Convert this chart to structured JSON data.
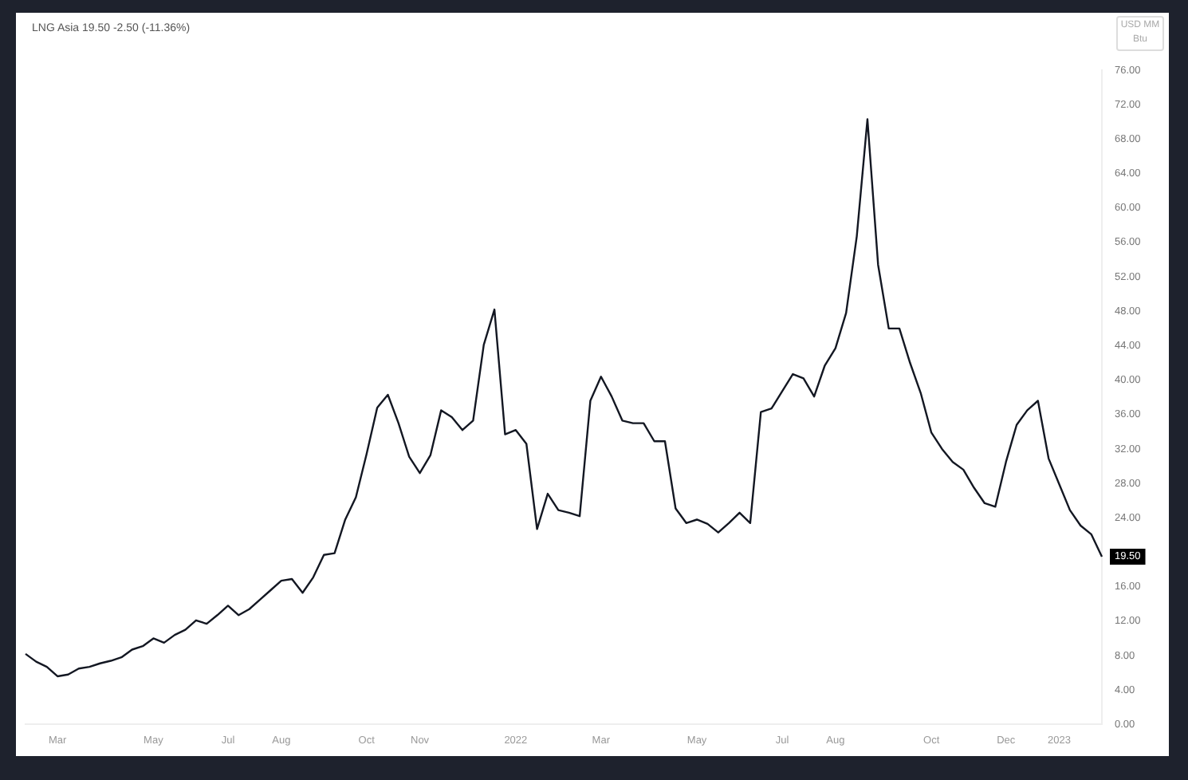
{
  "chart_data": {
    "type": "line",
    "title": "LNG Asia 19.50 -2.50 (-11.36%)",
    "ylabel": "USD MM Btu",
    "categories": [
      null,
      null,
      null,
      "Mar",
      null,
      null,
      null,
      null,
      null,
      null,
      null,
      null,
      "May",
      null,
      null,
      null,
      null,
      null,
      null,
      "Jul",
      null,
      null,
      null,
      null,
      "Aug",
      null,
      null,
      null,
      null,
      null,
      null,
      null,
      "Oct",
      null,
      null,
      null,
      null,
      "Nov",
      null,
      null,
      null,
      null,
      null,
      null,
      null,
      null,
      "2022",
      null,
      null,
      null,
      null,
      null,
      null,
      null,
      "Mar",
      null,
      null,
      null,
      null,
      null,
      null,
      null,
      null,
      "May",
      null,
      null,
      null,
      null,
      null,
      null,
      null,
      "Jul",
      null,
      null,
      null,
      null,
      "Aug",
      null,
      null,
      null,
      null,
      null,
      null,
      null,
      null,
      "Oct",
      null,
      null,
      null,
      null,
      null,
      null,
      "Dec",
      null,
      null,
      null,
      null,
      "2023",
      null,
      null,
      null,
      null
    ],
    "series": [
      {
        "color": "#131722",
        "values": [
          8.2,
          7.3,
          6.7,
          5.6,
          5.8,
          6.5,
          6.7,
          7.1,
          7.4,
          7.8,
          8.7,
          9.1,
          10.0,
          9.5,
          10.4,
          11.0,
          12.1,
          11.7,
          12.7,
          13.8,
          12.7,
          13.4,
          14.5,
          15.6,
          16.7,
          16.9,
          15.3,
          17.1,
          19.7,
          19.9,
          23.8,
          26.4,
          31.4,
          36.8,
          38.3,
          35.0,
          31.1,
          29.2,
          31.3,
          36.5,
          35.7,
          34.2,
          35.3,
          44.1,
          48.2,
          33.7,
          34.2,
          32.6,
          22.7,
          26.8,
          24.9,
          24.6,
          24.2,
          37.6,
          40.4,
          38.1,
          35.3,
          35.0,
          35.0,
          32.9,
          32.9,
          25.1,
          23.4,
          23.8,
          23.3,
          22.3,
          23.4,
          24.6,
          23.4,
          36.3,
          36.7,
          38.7,
          40.7,
          40.2,
          38.1,
          41.7,
          43.7,
          47.8,
          56.7,
          70.3,
          53.4,
          46.0,
          46.0,
          42.0,
          38.5,
          33.9,
          32.0,
          30.5,
          29.6,
          27.5,
          25.7,
          25.3,
          30.5,
          34.8,
          36.5,
          37.6,
          30.9,
          27.9,
          24.9,
          23.1,
          22.1,
          19.5
        ]
      }
    ],
    "ylim": [
      0,
      76
    ],
    "yticks": [
      {
        "value": 0,
        "label": "0.00"
      },
      {
        "value": 4,
        "label": "4.00"
      },
      {
        "value": 8,
        "label": "8.00"
      },
      {
        "value": 12,
        "label": "12.00"
      },
      {
        "value": 16,
        "label": "16.00"
      },
      {
        "value": 24,
        "label": "24.00"
      },
      {
        "value": 28,
        "label": "28.00"
      },
      {
        "value": 32,
        "label": "32.00"
      },
      {
        "value": 36,
        "label": "36.00"
      },
      {
        "value": 40,
        "label": "40.00"
      },
      {
        "value": 44,
        "label": "44.00"
      },
      {
        "value": 48,
        "label": "48.00"
      },
      {
        "value": 52,
        "label": "52.00"
      },
      {
        "value": 56,
        "label": "56.00"
      },
      {
        "value": 60,
        "label": "60.00"
      },
      {
        "value": 64,
        "label": "64.00"
      },
      {
        "value": 68,
        "label": "68.00"
      },
      {
        "value": 72,
        "label": "72.00"
      },
      {
        "value": 76,
        "label": "76.00"
      }
    ],
    "annotations": [
      "19.50"
    ],
    "grid": false,
    "legend": false,
    "marker": "none",
    "line_style": "solid"
  }
}
